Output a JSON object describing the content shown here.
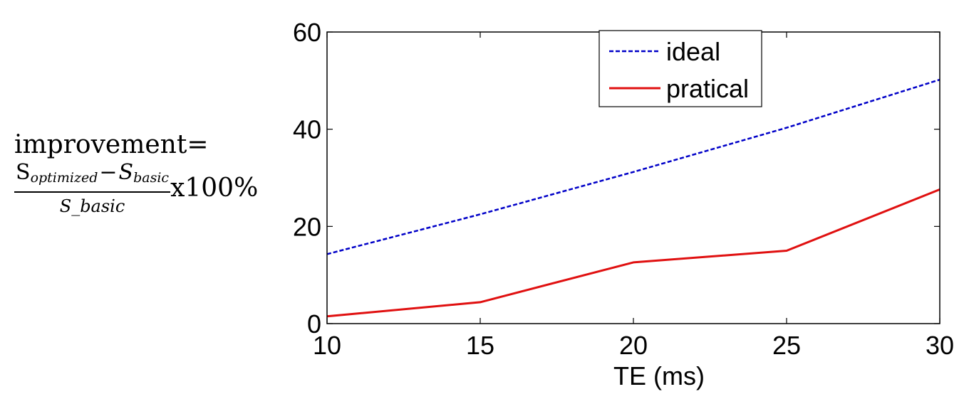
{
  "ylabel": {
    "line1": "improvement=",
    "numerator_s": "S",
    "numerator_sub1": "optimized",
    "minus": "−",
    "numerator_s2": "S",
    "numerator_sub2": "basic",
    "denominator": "S_basic",
    "times": "x100%"
  },
  "colors": {
    "ideal": "#0000c8",
    "pratical": "#e01010",
    "axis": "#000000"
  },
  "chart_data": {
    "type": "line",
    "title": "",
    "xlabel": "TE (ms)",
    "ylabel": "improvement= (S_optimized − S_basic) / S_basic x100%",
    "xlim": [
      10,
      30
    ],
    "ylim": [
      0,
      60
    ],
    "xticks": [
      10,
      15,
      20,
      25,
      30
    ],
    "yticks": [
      0,
      20,
      40,
      60
    ],
    "grid": false,
    "legend_position": "top-right",
    "series": [
      {
        "name": "ideal",
        "style": "dashed",
        "x": [
          10,
          15,
          20,
          25,
          30
        ],
        "y": [
          14.3,
          22.5,
          31.2,
          40.3,
          50.2
        ]
      },
      {
        "name": "pratical",
        "style": "solid",
        "x": [
          10,
          15,
          20,
          25,
          30
        ],
        "y": [
          1.5,
          4.4,
          12.6,
          15.0,
          27.6
        ]
      }
    ]
  }
}
